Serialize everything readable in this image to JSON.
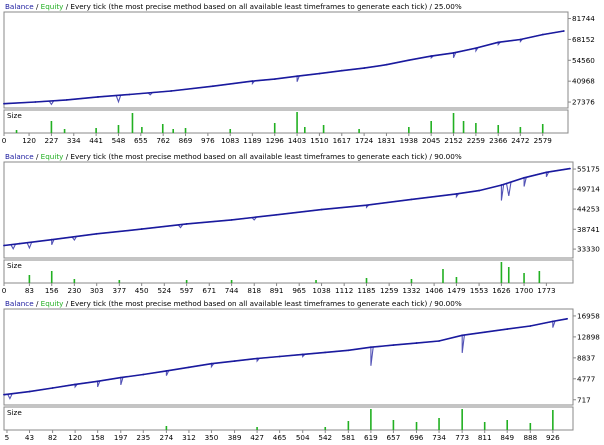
{
  "colors": {
    "balance": "#1a1a9e",
    "equity": "#22b022",
    "size_bar": "#22b022",
    "frame": "#888888",
    "text": "#000000"
  },
  "chart_data": [
    {
      "type": "line",
      "header": {
        "balance_label": "Balance",
        "sep1": " / ",
        "equity_label": "Equity",
        "rest": " / Every tick (the most precise method based on all available least timeframes to generate each tick) / 25.00%"
      },
      "size_label": "Size",
      "yticks": [
        27376,
        40968,
        54560,
        68152,
        81744
      ],
      "ylim": [
        23500,
        86000
      ],
      "xlim": [
        0,
        2700
      ],
      "xticks": [
        0,
        120,
        227,
        334,
        441,
        548,
        655,
        762,
        869,
        976,
        1083,
        1189,
        1296,
        1403,
        1510,
        1617,
        1724,
        1831,
        1938,
        2045,
        2152,
        2259,
        2366,
        2472,
        2579
      ],
      "balance": [
        [
          0,
          26300
        ],
        [
          150,
          27400
        ],
        [
          300,
          28800
        ],
        [
          450,
          30700
        ],
        [
          600,
          32300
        ],
        [
          800,
          34600
        ],
        [
          1000,
          37700
        ],
        [
          1189,
          41000
        ],
        [
          1296,
          42300
        ],
        [
          1403,
          44200
        ],
        [
          1510,
          45900
        ],
        [
          1617,
          47800
        ],
        [
          1724,
          49500
        ],
        [
          1831,
          51700
        ],
        [
          1938,
          54600
        ],
        [
          2045,
          57300
        ],
        [
          2152,
          59400
        ],
        [
          2259,
          62500
        ],
        [
          2366,
          66300
        ],
        [
          2472,
          68100
        ],
        [
          2579,
          71300
        ],
        [
          2680,
          73600
        ]
      ],
      "equity_dips": [
        [
          227,
          2300
        ],
        [
          548,
          4200
        ],
        [
          700,
          1400
        ],
        [
          1189,
          1600
        ],
        [
          1403,
          3600
        ],
        [
          2045,
          1200
        ],
        [
          2152,
          3200
        ],
        [
          2259,
          1800
        ],
        [
          2366,
          1500
        ],
        [
          2472,
          1300
        ]
      ],
      "size_bars": [
        [
          60,
          3
        ],
        [
          227,
          12
        ],
        [
          290,
          4
        ],
        [
          441,
          5
        ],
        [
          548,
          8
        ],
        [
          615,
          20
        ],
        [
          660,
          6
        ],
        [
          760,
          9
        ],
        [
          810,
          4
        ],
        [
          869,
          5
        ],
        [
          1083,
          4
        ],
        [
          1296,
          10
        ],
        [
          1403,
          26
        ],
        [
          1440,
          6
        ],
        [
          1530,
          8
        ],
        [
          1700,
          4
        ],
        [
          1938,
          6
        ],
        [
          2045,
          12
        ],
        [
          2152,
          20
        ],
        [
          2200,
          12
        ],
        [
          2259,
          10
        ],
        [
          2366,
          8
        ],
        [
          2472,
          6
        ],
        [
          2579,
          9
        ]
      ]
    },
    {
      "type": "line",
      "header": {
        "balance_label": "Balance",
        "sep1": " / ",
        "equity_label": "Equity",
        "rest": " / Every tick (the most precise method based on all available least timeframes to generate each tick) / 90.00%"
      },
      "size_label": "Size",
      "yticks": [
        33330,
        38741,
        44253,
        49714,
        55175
      ],
      "ylim": [
        30900,
        57100
      ],
      "xlim": [
        0,
        1860
      ],
      "xticks": [
        0,
        83,
        156,
        230,
        303,
        377,
        450,
        524,
        597,
        671,
        744,
        818,
        891,
        965,
        1038,
        1112,
        1185,
        1259,
        1332,
        1406,
        1479,
        1553,
        1626,
        1700,
        1773
      ],
      "balance": [
        [
          0,
          34300
        ],
        [
          50,
          34800
        ],
        [
          156,
          35900
        ],
        [
          303,
          37500
        ],
        [
          450,
          38800
        ],
        [
          597,
          40200
        ],
        [
          744,
          41300
        ],
        [
          891,
          42700
        ],
        [
          1038,
          44100
        ],
        [
          1185,
          45300
        ],
        [
          1332,
          46900
        ],
        [
          1479,
          48400
        ],
        [
          1553,
          49300
        ],
        [
          1626,
          50800
        ],
        [
          1700,
          52800
        ],
        [
          1773,
          54300
        ],
        [
          1850,
          55300
        ]
      ],
      "equity_dips": [
        [
          30,
          1200
        ],
        [
          83,
          1500
        ],
        [
          156,
          1400
        ],
        [
          230,
          900
        ],
        [
          577,
          800
        ],
        [
          818,
          700
        ],
        [
          1185,
          600
        ],
        [
          1479,
          800
        ],
        [
          1626,
          4200
        ],
        [
          1650,
          3600
        ],
        [
          1700,
          2400
        ],
        [
          1773,
          1200
        ]
      ],
      "size_bars": [
        [
          83,
          8
        ],
        [
          156,
          12
        ],
        [
          230,
          4
        ],
        [
          377,
          3
        ],
        [
          597,
          3
        ],
        [
          744,
          3
        ],
        [
          1020,
          3
        ],
        [
          1185,
          5
        ],
        [
          1332,
          4
        ],
        [
          1435,
          14
        ],
        [
          1479,
          6
        ],
        [
          1626,
          26
        ],
        [
          1650,
          16
        ],
        [
          1700,
          10
        ],
        [
          1750,
          12
        ]
      ]
    },
    {
      "type": "line",
      "header": {
        "balance_label": "Balance",
        "sep1": " / ",
        "equity_label": "Equity",
        "rest": " / Every tick (the most precise method based on all available least timeframes to generate each tick) / 90.00%"
      },
      "size_label": "Size",
      "yticks": [
        717,
        4777,
        8837,
        12898,
        16958
      ],
      "ylim": [
        -300,
        18300
      ],
      "xlim": [
        0,
        960
      ],
      "xticks": [
        5,
        43,
        82,
        120,
        158,
        197,
        235,
        274,
        312,
        350,
        389,
        427,
        465,
        504,
        542,
        581,
        619,
        657,
        696,
        734,
        773,
        811,
        849,
        888,
        926
      ],
      "balance": [
        [
          0,
          1700
        ],
        [
          43,
          2300
        ],
        [
          82,
          3000
        ],
        [
          120,
          3700
        ],
        [
          158,
          4300
        ],
        [
          197,
          5000
        ],
        [
          235,
          5600
        ],
        [
          274,
          6300
        ],
        [
          312,
          7000
        ],
        [
          350,
          7700
        ],
        [
          389,
          8200
        ],
        [
          427,
          8700
        ],
        [
          465,
          9100
        ],
        [
          504,
          9500
        ],
        [
          542,
          9900
        ],
        [
          581,
          10300
        ],
        [
          619,
          10900
        ],
        [
          657,
          11300
        ],
        [
          696,
          11700
        ],
        [
          734,
          12100
        ],
        [
          773,
          13200
        ],
        [
          811,
          13800
        ],
        [
          849,
          14400
        ],
        [
          888,
          15000
        ],
        [
          926,
          15900
        ],
        [
          950,
          16400
        ]
      ],
      "equity_dips": [
        [
          10,
          900
        ],
        [
          120,
          500
        ],
        [
          158,
          1100
        ],
        [
          197,
          1400
        ],
        [
          274,
          900
        ],
        [
          350,
          600
        ],
        [
          427,
          500
        ],
        [
          504,
          400
        ],
        [
          619,
          3600
        ],
        [
          773,
          3400
        ],
        [
          926,
          1200
        ]
      ],
      "size_bars": [
        [
          274,
          4
        ],
        [
          427,
          3
        ],
        [
          542,
          3
        ],
        [
          581,
          9
        ],
        [
          619,
          34
        ],
        [
          657,
          10
        ],
        [
          696,
          8
        ],
        [
          734,
          12
        ],
        [
          773,
          30
        ],
        [
          811,
          8
        ],
        [
          849,
          10
        ],
        [
          888,
          7
        ],
        [
          926,
          20
        ]
      ]
    }
  ]
}
